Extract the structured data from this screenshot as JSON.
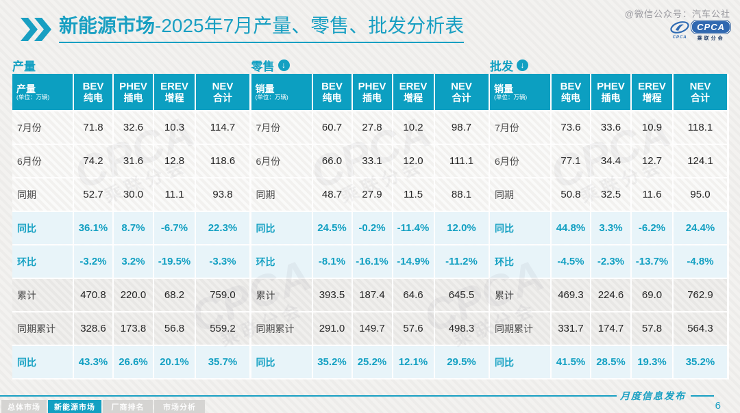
{
  "page": {
    "watermark": "@微信公众号：汽车公社",
    "logo": {
      "swoosh_small": "CPCA",
      "badge": "CPCA",
      "sub": "乘联分会"
    },
    "title": {
      "bold": "新能源市场",
      "rest": "-2025年7月产量、零售、批发分析表"
    }
  },
  "icons": {
    "down_arrow": "↓"
  },
  "tables": [
    {
      "section_title": "产量",
      "arrow": false,
      "corner_header": "产量",
      "unit": "(单位：万辆)",
      "columns": [
        {
          "en": "BEV",
          "cn": "纯电"
        },
        {
          "en": "PHEV",
          "cn": "插电"
        },
        {
          "en": "EREV",
          "cn": "增程"
        },
        {
          "en": "NEV",
          "cn": "合计"
        }
      ],
      "rows": [
        {
          "label": "7月份",
          "style": "plain",
          "values": [
            "71.8",
            "32.6",
            "10.3",
            "114.7"
          ]
        },
        {
          "label": "6月份",
          "style": "plain",
          "values": [
            "74.2",
            "31.6",
            "12.8",
            "118.6"
          ]
        },
        {
          "label": "同期",
          "style": "plain",
          "values": [
            "52.7",
            "30.0",
            "11.1",
            "93.8"
          ]
        },
        {
          "label": "同比",
          "style": "pct",
          "values": [
            "36.1%",
            "8.7%",
            "-6.7%",
            "22.3%"
          ]
        },
        {
          "label": "环比",
          "style": "pct",
          "values": [
            "-3.2%",
            "3.2%",
            "-19.5%",
            "-3.3%"
          ]
        },
        {
          "label": "累计",
          "style": "gray",
          "values": [
            "470.8",
            "220.0",
            "68.2",
            "759.0"
          ]
        },
        {
          "label": "同期累计",
          "style": "gray",
          "values": [
            "328.6",
            "173.8",
            "56.8",
            "559.2"
          ]
        },
        {
          "label": "同比",
          "style": "pct",
          "values": [
            "43.3%",
            "26.6%",
            "20.1%",
            "35.7%"
          ]
        }
      ]
    },
    {
      "section_title": "零售",
      "arrow": true,
      "corner_header": "销量",
      "unit": "(单位：万辆)",
      "columns": [
        {
          "en": "BEV",
          "cn": "纯电"
        },
        {
          "en": "PHEV",
          "cn": "插电"
        },
        {
          "en": "EREV",
          "cn": "增程"
        },
        {
          "en": "NEV",
          "cn": "合计"
        }
      ],
      "rows": [
        {
          "label": "7月份",
          "style": "plain",
          "values": [
            "60.7",
            "27.8",
            "10.2",
            "98.7"
          ]
        },
        {
          "label": "6月份",
          "style": "plain",
          "values": [
            "66.0",
            "33.1",
            "12.0",
            "111.1"
          ]
        },
        {
          "label": "同期",
          "style": "plain",
          "values": [
            "48.7",
            "27.9",
            "11.5",
            "88.1"
          ]
        },
        {
          "label": "同比",
          "style": "pct",
          "values": [
            "24.5%",
            "-0.2%",
            "-11.4%",
            "12.0%"
          ]
        },
        {
          "label": "环比",
          "style": "pct",
          "values": [
            "-8.1%",
            "-16.1%",
            "-14.9%",
            "-11.2%"
          ]
        },
        {
          "label": "累计",
          "style": "gray",
          "values": [
            "393.5",
            "187.4",
            "64.6",
            "645.5"
          ]
        },
        {
          "label": "同期累计",
          "style": "gray",
          "values": [
            "291.0",
            "149.7",
            "57.6",
            "498.3"
          ]
        },
        {
          "label": "同比",
          "style": "pct",
          "values": [
            "35.2%",
            "25.2%",
            "12.1%",
            "29.5%"
          ]
        }
      ]
    },
    {
      "section_title": "批发",
      "arrow": true,
      "corner_header": "销量",
      "unit": "(单位：万辆)",
      "columns": [
        {
          "en": "BEV",
          "cn": "纯电"
        },
        {
          "en": "PHEV",
          "cn": "插电"
        },
        {
          "en": "EREV",
          "cn": "增程"
        },
        {
          "en": "NEV",
          "cn": "合计"
        }
      ],
      "rows": [
        {
          "label": "7月份",
          "style": "plain",
          "values": [
            "73.6",
            "33.6",
            "10.9",
            "118.1"
          ]
        },
        {
          "label": "6月份",
          "style": "plain",
          "values": [
            "77.1",
            "34.4",
            "12.7",
            "124.1"
          ]
        },
        {
          "label": "同期",
          "style": "plain",
          "values": [
            "50.8",
            "32.5",
            "11.6",
            "95.0"
          ]
        },
        {
          "label": "同比",
          "style": "pct",
          "values": [
            "44.8%",
            "3.3%",
            "-6.2%",
            "24.4%"
          ]
        },
        {
          "label": "环比",
          "style": "pct",
          "values": [
            "-4.5%",
            "-2.3%",
            "-13.7%",
            "-4.8%"
          ]
        },
        {
          "label": "累计",
          "style": "gray",
          "values": [
            "469.3",
            "224.6",
            "69.0",
            "762.9"
          ]
        },
        {
          "label": "同期累计",
          "style": "gray",
          "values": [
            "331.7",
            "174.7",
            "57.8",
            "564.3"
          ]
        },
        {
          "label": "同比",
          "style": "pct",
          "values": [
            "41.5%",
            "28.5%",
            "19.3%",
            "35.2%"
          ]
        }
      ]
    }
  ],
  "footer": {
    "tabs": [
      {
        "label": "总体市场",
        "active": false
      },
      {
        "label": "新能源市场",
        "active": true
      },
      {
        "label": "厂商排名",
        "active": false
      },
      {
        "label": "市场分析",
        "active": false
      }
    ],
    "publish_label": "月度信息发布",
    "page_number": "6"
  }
}
